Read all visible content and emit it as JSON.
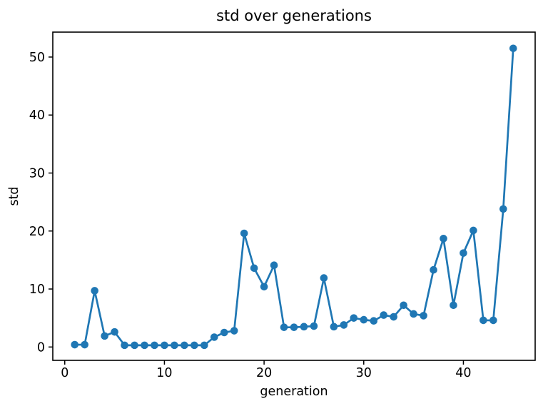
{
  "chart_data": {
    "type": "line",
    "title": "std over generations",
    "xlabel": "generation",
    "ylabel": "std",
    "x": [
      1,
      2,
      3,
      4,
      5,
      6,
      7,
      8,
      9,
      10,
      11,
      12,
      13,
      14,
      15,
      16,
      17,
      18,
      19,
      20,
      21,
      22,
      23,
      24,
      25,
      26,
      27,
      28,
      29,
      30,
      31,
      32,
      33,
      34,
      35,
      36,
      37,
      38,
      39,
      40,
      41,
      42,
      43,
      44,
      45
    ],
    "y": [
      0.4,
      0.4,
      9.7,
      1.9,
      2.6,
      0.3,
      0.3,
      0.3,
      0.3,
      0.3,
      0.3,
      0.3,
      0.3,
      0.3,
      1.7,
      2.5,
      2.8,
      19.6,
      13.6,
      10.4,
      14.1,
      3.4,
      3.4,
      3.5,
      3.6,
      11.9,
      3.5,
      3.8,
      5.0,
      4.7,
      4.5,
      5.5,
      5.2,
      7.2,
      5.7,
      5.4,
      13.3,
      18.7,
      7.2,
      16.2,
      20.1,
      4.6,
      4.6,
      23.8,
      51.5
    ],
    "xlim": [
      -1.2,
      47.2
    ],
    "ylim": [
      -2.3,
      54.3
    ],
    "xticks": [
      0,
      10,
      20,
      30,
      40
    ],
    "yticks": [
      0,
      10,
      20,
      30,
      40,
      50
    ],
    "grid": false,
    "legend_position": "none",
    "line_color": "#1f77b4",
    "marker": "circle",
    "marker_color": "#1f77b4",
    "axis_color": "#000000"
  }
}
